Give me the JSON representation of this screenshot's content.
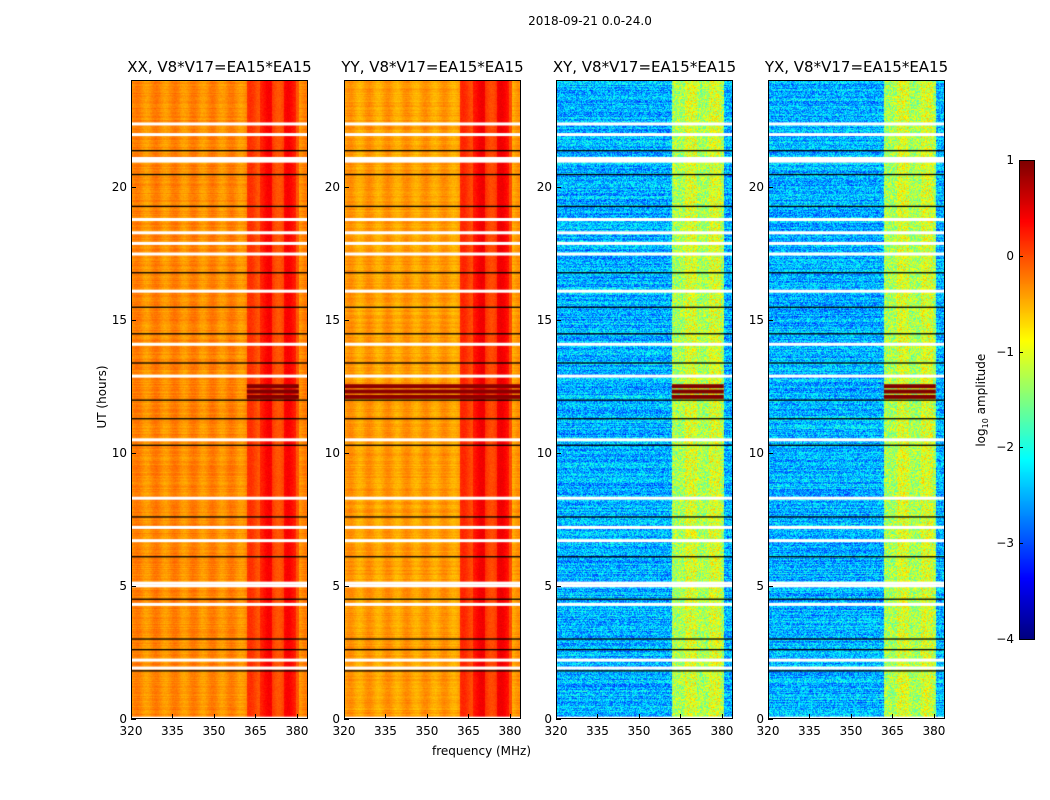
{
  "chart_data": {
    "type": "heatmap",
    "title": "2018-09-21 0.0-24.0",
    "xlabel": "frequency (MHz)",
    "ylabel": "UT (hours)",
    "xlim": [
      320,
      384
    ],
    "ylim": [
      0,
      24
    ],
    "xticks": [
      "320",
      "335",
      "350",
      "365",
      "380"
    ],
    "xtick_values": [
      320,
      335,
      350,
      365,
      380
    ],
    "yticks": [
      "0",
      "5",
      "10",
      "15",
      "20"
    ],
    "ytick_values": [
      0,
      5,
      10,
      15,
      20
    ],
    "panels": [
      {
        "title": "XX, V8*V17=EA15*EA15",
        "background_log10": -0.3,
        "band_log10": 0.15,
        "band_mhz": [
          362,
          381
        ]
      },
      {
        "title": "YY, V8*V17=EA15*EA15",
        "background_log10": -0.4,
        "band_log10": 0.2,
        "band_mhz": [
          362,
          381
        ]
      },
      {
        "title": "XY, V8*V17=EA15*EA15",
        "background_log10": -2.5,
        "band_log10": -1.2,
        "band_mhz": [
          362,
          381
        ]
      },
      {
        "title": "YX, V8*V17=EA15*EA15",
        "background_log10": -2.5,
        "band_log10": -1.2,
        "band_mhz": [
          362,
          381
        ]
      }
    ],
    "flagged_hours": [
      22.4,
      22.0,
      21.1,
      21.0,
      18.8,
      18.3,
      17.9,
      17.5,
      16.1,
      14.1,
      12.9,
      10.5,
      8.3,
      7.2,
      6.7,
      5.1,
      5.0,
      4.3,
      2.2,
      1.9
    ],
    "dark_rows_hours": [
      21.4,
      20.5,
      19.3,
      16.8,
      15.5,
      14.5,
      13.4,
      12.0,
      11.3,
      10.3,
      7.6,
      6.1,
      4.5,
      3.0,
      2.6,
      1.8
    ],
    "bright_event_hours": [
      12.1,
      12.3,
      12.5
    ],
    "colorbar": {
      "label_main": "log",
      "label_sub": "10",
      "label_rest": " amplitude",
      "range": [
        -4,
        1
      ],
      "ticks": [
        "1",
        "0",
        "−1",
        "−2",
        "−3",
        "−4"
      ],
      "tick_values": [
        1,
        0,
        -1,
        -2,
        -3,
        -4
      ]
    }
  }
}
